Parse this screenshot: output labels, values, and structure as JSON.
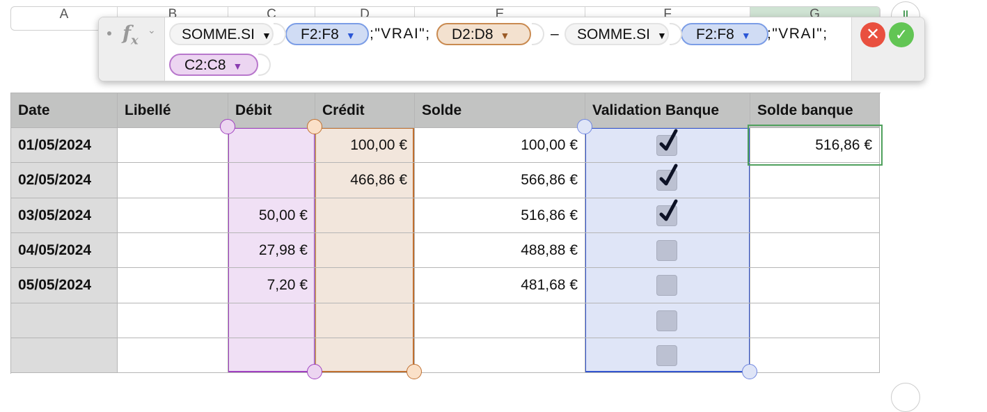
{
  "columns": [
    "A",
    "B",
    "C",
    "D",
    "E",
    "F",
    "G"
  ],
  "selected_column": "G",
  "formula": {
    "tokens": [
      {
        "type": "function",
        "text": "SOMME.SI"
      },
      {
        "type": "ref",
        "text": "F2:F8",
        "color": "blue"
      },
      {
        "type": "text",
        "text": ";\"VRAI\";"
      },
      {
        "type": "ref",
        "text": "D2:D8",
        "color": "orange"
      },
      {
        "type": "text",
        "text": "–"
      },
      {
        "type": "function",
        "text": "SOMME.SI"
      },
      {
        "type": "ref",
        "text": "F2:F8",
        "color": "blue"
      },
      {
        "type": "text",
        "text": ";\"VRAI\";"
      },
      {
        "type": "ref",
        "text": "C2:C8",
        "color": "purple"
      }
    ],
    "cancel_icon": "x-circle-icon",
    "accept_icon": "check-circle-icon"
  },
  "table": {
    "headers": [
      "Date",
      "Libellé",
      "Débit",
      "Crédit",
      "Solde",
      "Validation Banque",
      "Solde banque"
    ],
    "rows": [
      {
        "date": "01/05/2024",
        "libelle": "",
        "debit": "",
        "credit": "100,00 €",
        "solde": "100,00 €",
        "validated": true,
        "solde_banque": "516,86 €"
      },
      {
        "date": "02/05/2024",
        "libelle": "",
        "debit": "",
        "credit": "466,86 €",
        "solde": "566,86 €",
        "validated": true,
        "solde_banque": ""
      },
      {
        "date": "03/05/2024",
        "libelle": "",
        "debit": "50,00 €",
        "credit": "",
        "solde": "516,86 €",
        "validated": true,
        "solde_banque": ""
      },
      {
        "date": "04/05/2024",
        "libelle": "",
        "debit": "27,98 €",
        "credit": "",
        "solde": "488,88 €",
        "validated": false,
        "solde_banque": ""
      },
      {
        "date": "05/05/2024",
        "libelle": "",
        "debit": "7,20 €",
        "credit": "",
        "solde": "481,68 €",
        "validated": false,
        "solde_banque": ""
      },
      {
        "date": "",
        "libelle": "",
        "debit": "",
        "credit": "",
        "solde": "",
        "validated": false,
        "solde_banque": ""
      },
      {
        "date": "",
        "libelle": "",
        "debit": "",
        "credit": "",
        "solde": "",
        "validated": false,
        "solde_banque": ""
      }
    ]
  },
  "colors": {
    "blue": "#3355d0",
    "orange": "#c07030",
    "purple": "#a040c0",
    "selection": "#4fa05c"
  }
}
